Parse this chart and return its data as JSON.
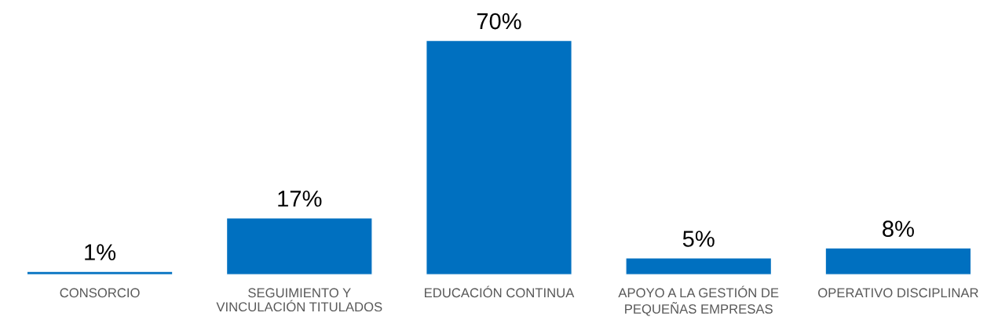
{
  "chart_data": {
    "type": "bar",
    "categories": [
      "CONSORCIO",
      "SEGUIMIENTO Y\nVINCULACIÓN TITULADOS",
      "EDUCACIÓN CONTINUA",
      "APOYO A LA GESTIÓN DE\nPEQUEÑAS EMPRESAS",
      "OPERATIVO DISCIPLINAR"
    ],
    "values": [
      1,
      17,
      70,
      5,
      8
    ],
    "value_labels": [
      "1%",
      "17%",
      "70%",
      "5%",
      "8%"
    ],
    "color": "#0070c0",
    "grid": false,
    "legend": false
  }
}
